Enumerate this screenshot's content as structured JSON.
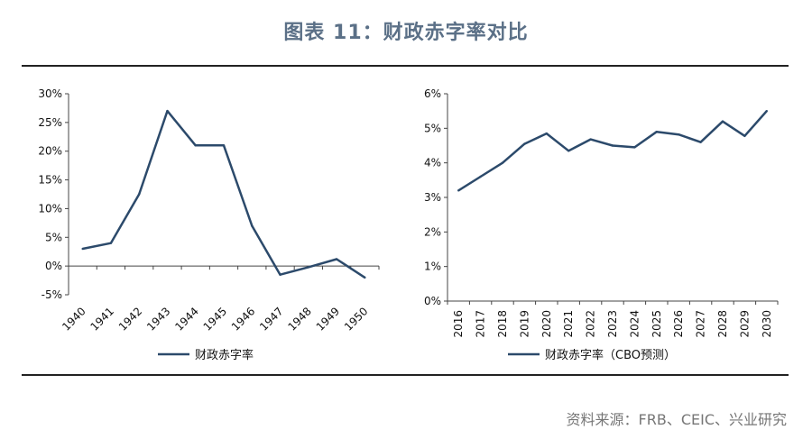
{
  "title": "图表 11：财政赤字率对比",
  "source": "资料来源：FRB、CEIC、兴业研究",
  "colors": {
    "line": "#2c4a6b",
    "axis": "#444444",
    "title": "#5b7087"
  },
  "chart_data": [
    {
      "type": "line",
      "x": [
        "1940",
        "1941",
        "1942",
        "1943",
        "1944",
        "1945",
        "1946",
        "1947",
        "1948",
        "1949",
        "1950"
      ],
      "series": [
        {
          "name": "财政赤字率",
          "values": [
            3.0,
            4.0,
            12.5,
            27.0,
            21.0,
            21.0,
            7.0,
            -1.5,
            -0.2,
            1.2,
            -2.0
          ]
        }
      ],
      "ylim": [
        -5,
        30
      ],
      "yticks": [
        -5,
        0,
        5,
        10,
        15,
        20,
        25,
        30
      ],
      "ytick_labels": [
        "-5%",
        "0%",
        "5%",
        "10%",
        "15%",
        "20%",
        "25%",
        "30%"
      ],
      "legend": "bottom",
      "grid": false
    },
    {
      "type": "line",
      "x": [
        "2016",
        "2017",
        "2018",
        "2019",
        "2020",
        "2021",
        "2022",
        "2023",
        "2024",
        "2025",
        "2026",
        "2027",
        "2028",
        "2029",
        "2030"
      ],
      "series": [
        {
          "name": "财政赤字率（CBO预测）",
          "values": [
            3.2,
            3.6,
            4.0,
            4.55,
            4.85,
            4.35,
            4.68,
            4.5,
            4.45,
            4.9,
            4.82,
            4.6,
            5.2,
            4.78,
            5.5
          ]
        }
      ],
      "ylim": [
        0,
        6
      ],
      "yticks": [
        0,
        1,
        2,
        3,
        4,
        5,
        6
      ],
      "ytick_labels": [
        "0%",
        "1%",
        "2%",
        "3%",
        "4%",
        "5%",
        "6%"
      ],
      "legend": "bottom",
      "grid": false
    }
  ]
}
